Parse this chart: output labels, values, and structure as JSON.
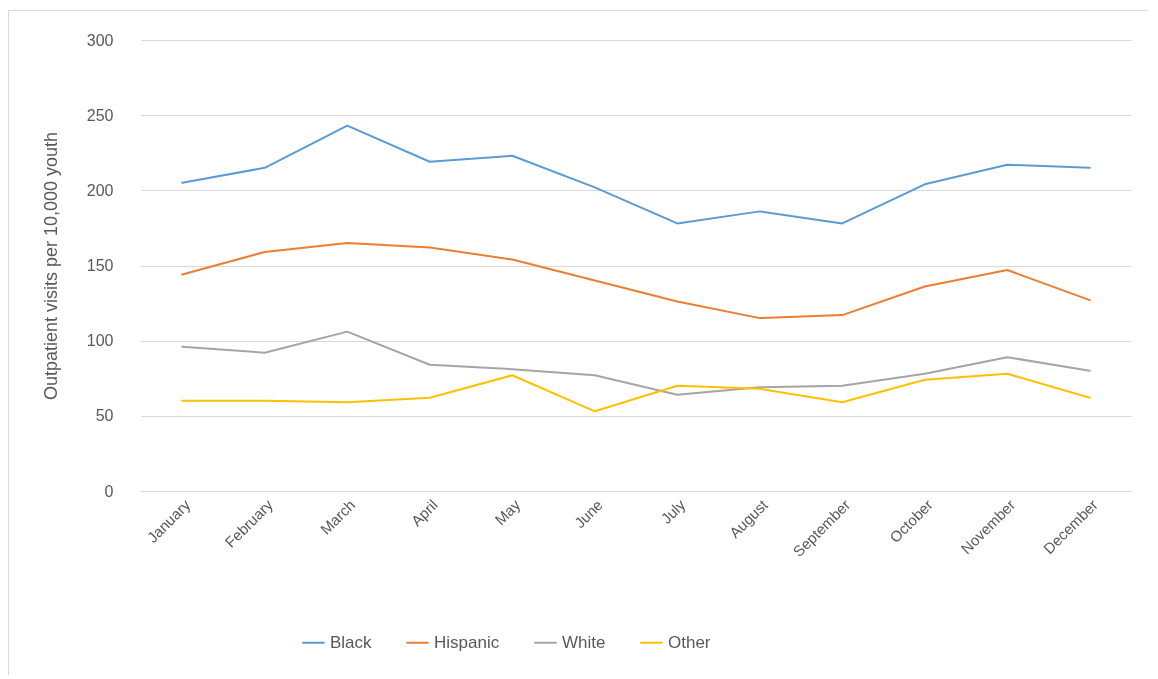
{
  "chart_data": {
    "type": "line",
    "ylabel": "Outpatient visits per 10,000 youth",
    "categories": [
      "January",
      "February",
      "March",
      "April",
      "May",
      "June",
      "July",
      "August",
      "September",
      "October",
      "November",
      "December"
    ],
    "series": [
      {
        "name": "Black",
        "color": "#5b9bd5",
        "values": [
          205,
          215,
          243,
          219,
          223,
          202,
          178,
          186,
          178,
          204,
          217,
          215
        ]
      },
      {
        "name": "Hispanic",
        "color": "#ed7d31",
        "values": [
          144,
          159,
          165,
          162,
          154,
          140,
          126,
          115,
          117,
          136,
          147,
          127
        ]
      },
      {
        "name": "White",
        "color": "#a5a5a5",
        "values": [
          96,
          92,
          106,
          84,
          81,
          77,
          64,
          69,
          70,
          78,
          89,
          80
        ]
      },
      {
        "name": "Other",
        "color": "#ffc000",
        "values": [
          60,
          60,
          59,
          62,
          77,
          53,
          70,
          68,
          59,
          74,
          78,
          62
        ]
      }
    ],
    "ylim": [
      0,
      300
    ],
    "yticks": [
      0,
      50,
      100,
      150,
      200,
      250,
      300
    ],
    "grid": "y",
    "legend": "bottom",
    "marker": "none",
    "line_style": "solid"
  }
}
